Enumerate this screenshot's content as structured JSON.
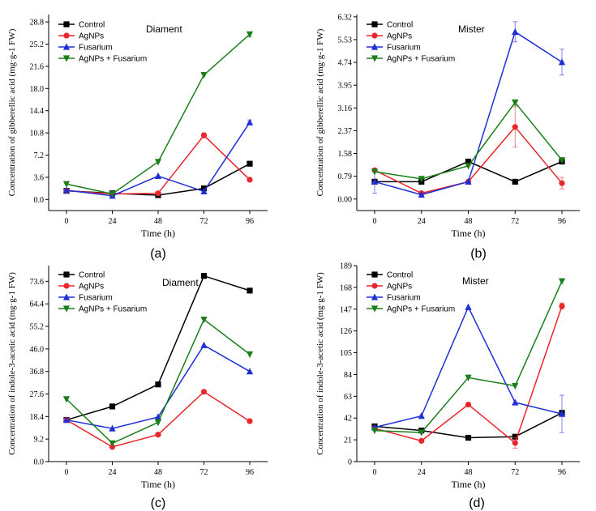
{
  "chart_data": [
    {
      "type": "line",
      "panel_label": "(a)",
      "title": "Diament",
      "xlabel": "Time (h)",
      "ylabel": "Concentration of gibberellic acid (mg·g-1 FW)",
      "categories": [
        "0",
        "24",
        "48",
        "72",
        "96"
      ],
      "yticks": [
        "0.0",
        "3.6",
        "7.2",
        "10.8",
        "14.4",
        "18.0",
        "21.6",
        "25.2",
        "28.8"
      ],
      "ylim": [
        -1.8,
        30
      ],
      "legend_position": "top-left",
      "series": [
        {
          "name": "Control",
          "color": "#000000",
          "marker": "square",
          "values": [
            1.4,
            1.0,
            0.7,
            1.8,
            5.8
          ]
        },
        {
          "name": "AgNPs",
          "color": "#e8262b",
          "marker": "circle",
          "values": [
            1.4,
            0.9,
            1.0,
            10.4,
            3.2
          ],
          "errors": [
            0,
            0,
            0,
            0.4,
            0
          ]
        },
        {
          "name": "Fusarium",
          "color": "#1f2fd6",
          "marker": "triangle-up",
          "values": [
            1.5,
            0.6,
            3.8,
            1.3,
            12.5
          ],
          "errors": [
            0,
            0,
            0,
            0,
            0.4
          ]
        },
        {
          "name": "AgNPs + Fusarium",
          "color": "#1a7f1a",
          "marker": "triangle-down",
          "values": [
            2.5,
            0.9,
            6.1,
            20.2,
            26.8
          ],
          "errors": [
            0,
            0,
            0,
            0,
            0.4
          ]
        }
      ]
    },
    {
      "type": "line",
      "panel_label": "(b)",
      "title": "Mister",
      "xlabel": "Time (h)",
      "ylabel": "Concentration of gibberellic acid (mg·g-1 FW)",
      "categories": [
        "0",
        "24",
        "48",
        "72",
        "96"
      ],
      "yticks": [
        "0.00",
        "0.79",
        "1.58",
        "2.37",
        "3.16",
        "3.95",
        "4.74",
        "5.53",
        "6.32"
      ],
      "ylim": [
        -0.4,
        6.4
      ],
      "legend_position": "top-left",
      "series": [
        {
          "name": "Control",
          "color": "#000000",
          "marker": "square",
          "values": [
            0.6,
            0.6,
            1.3,
            0.6,
            1.3
          ]
        },
        {
          "name": "AgNPs",
          "color": "#e8262b",
          "marker": "circle",
          "values": [
            1.0,
            0.2,
            0.6,
            2.5,
            0.55
          ],
          "errors": [
            0,
            0,
            0,
            0.7,
            0.2
          ]
        },
        {
          "name": "Fusarium",
          "color": "#1f2fd6",
          "marker": "triangle-up",
          "values": [
            0.6,
            0.15,
            0.6,
            5.8,
            4.75
          ],
          "errors": [
            0.4,
            0,
            0,
            0.35,
            0.45
          ]
        },
        {
          "name": "AgNPs + Fusarium",
          "color": "#1a7f1a",
          "marker": "triangle-down",
          "values": [
            0.95,
            0.7,
            1.15,
            3.35,
            1.35
          ],
          "errors": [
            0,
            0,
            0,
            0.1,
            0
          ]
        }
      ]
    },
    {
      "type": "line",
      "panel_label": "(c)",
      "title": "Diament",
      "xlabel": "Time (h)",
      "ylabel": "Concentration of indole-3-acetic acid (mg·g-1 FW)",
      "categories": [
        "0",
        "24",
        "48",
        "72",
        "96"
      ],
      "yticks": [
        "0.0",
        "9.2",
        "18.4",
        "27.6",
        "36.8",
        "46.0",
        "55.2",
        "64.4",
        "73.6"
      ],
      "ylim": [
        0,
        80
      ],
      "legend_position": "top-left",
      "series": [
        {
          "name": "Control",
          "color": "#000000",
          "marker": "square",
          "values": [
            17.0,
            22.5,
            31.5,
            75.8,
            69.8
          ]
        },
        {
          "name": "AgNPs",
          "color": "#e8262b",
          "marker": "circle",
          "values": [
            17.0,
            6.0,
            11.0,
            28.5,
            16.5
          ]
        },
        {
          "name": "Fusarium",
          "color": "#1f2fd6",
          "marker": "triangle-up",
          "values": [
            17.0,
            13.5,
            18.2,
            47.5,
            36.8
          ]
        },
        {
          "name": "AgNPs + Fusarium",
          "color": "#1a7f1a",
          "marker": "triangle-down",
          "values": [
            25.5,
            7.5,
            16.0,
            58.0,
            43.8
          ]
        }
      ]
    },
    {
      "type": "line",
      "panel_label": "(d)",
      "title": "Mister",
      "xlabel": "Time (h)",
      "ylabel": "Concentration of indole-3-acetic acid (mg·g-1 FW)",
      "categories": [
        "0",
        "24",
        "48",
        "72",
        "96"
      ],
      "yticks": [
        "0",
        "21",
        "42",
        "63",
        "84",
        "105",
        "126",
        "147",
        "168",
        "189"
      ],
      "ylim": [
        0,
        189
      ],
      "legend_position": "top-left",
      "series": [
        {
          "name": "Control",
          "color": "#000000",
          "marker": "square",
          "values": [
            34,
            30,
            23,
            24,
            47
          ]
        },
        {
          "name": "AgNPs",
          "color": "#e8262b",
          "marker": "circle",
          "values": [
            32,
            20,
            55,
            18,
            150
          ],
          "errors": [
            0,
            0,
            0,
            5,
            3
          ]
        },
        {
          "name": "Fusarium",
          "color": "#1f2fd6",
          "marker": "triangle-up",
          "values": [
            33,
            44,
            149,
            57,
            46
          ],
          "errors": [
            0,
            0,
            0,
            0,
            18
          ]
        },
        {
          "name": "AgNPs + Fusarium",
          "color": "#1a7f1a",
          "marker": "triangle-down",
          "values": [
            30,
            28,
            81,
            73,
            174
          ]
        }
      ]
    }
  ]
}
